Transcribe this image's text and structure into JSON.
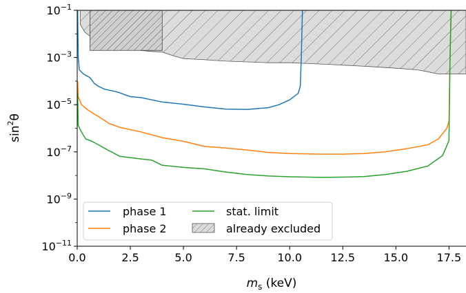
{
  "chart_data": {
    "type": "line",
    "xlabel": "m_s (keV)",
    "xlabel_parts": {
      "symbol": "m",
      "subscript": "s",
      "unit": " (keV)"
    },
    "ylabel": "sin²θ",
    "ylabel_parts": {
      "base": "sin",
      "sup": "2",
      "var": "θ"
    },
    "y_scale": "log",
    "xlim": [
      0,
      18.3
    ],
    "ylim": [
      1e-11,
      0.1
    ],
    "x_ticks": [
      0.0,
      2.5,
      5.0,
      7.5,
      10.0,
      12.5,
      15.0,
      17.5
    ],
    "x_tick_labels": [
      "0.0",
      "2.5",
      "5.0",
      "7.5",
      "10.0",
      "12.5",
      "15.0",
      "17.5"
    ],
    "y_ticks": [
      {
        "value": 1e-11,
        "base": "10",
        "exp": "−11"
      },
      {
        "value": 1e-09,
        "base": "10",
        "exp": "−9"
      },
      {
        "value": 1e-07,
        "base": "10",
        "exp": "−7"
      },
      {
        "value": 1e-05,
        "base": "10",
        "exp": "−5"
      },
      {
        "value": 0.001,
        "base": "10",
        "exp": "−3"
      },
      {
        "value": 0.1,
        "base": "10",
        "exp": "−1"
      }
    ],
    "grid": false,
    "legend_position": "lower-left",
    "series": [
      {
        "name": "phase 1",
        "color": "#1f77b4",
        "points": [
          [
            0.02,
            0.1
          ],
          [
            0.05,
            0.001
          ],
          [
            0.1,
            0.0003
          ],
          [
            0.3,
            0.0002
          ],
          [
            0.6,
            0.00014
          ],
          [
            0.8,
            8e-05
          ],
          [
            1.0,
            6e-05
          ],
          [
            1.3,
            4.5e-05
          ],
          [
            1.7,
            3.8e-05
          ],
          [
            2.0,
            3.2e-05
          ],
          [
            2.5,
            2.2e-05
          ],
          [
            3.0,
            2e-05
          ],
          [
            4.0,
            1.3e-05
          ],
          [
            5.0,
            1.05e-05
          ],
          [
            6.0,
            8e-06
          ],
          [
            7.0,
            6.5e-06
          ],
          [
            8.0,
            6.3e-06
          ],
          [
            9.0,
            7.5e-06
          ],
          [
            9.5,
            1e-05
          ],
          [
            10.0,
            1.6e-05
          ],
          [
            10.4,
            3e-05
          ],
          [
            10.5,
            6e-05
          ],
          [
            10.55,
            0.001
          ],
          [
            10.6,
            0.1
          ]
        ]
      },
      {
        "name": "phase 2",
        "color": "#ff7f0e",
        "points": [
          [
            0.02,
            0.0001
          ],
          [
            0.05,
            2.2e-05
          ],
          [
            0.2,
            1e-05
          ],
          [
            0.5,
            6e-06
          ],
          [
            0.8,
            4e-06
          ],
          [
            1.0,
            3.2e-06
          ],
          [
            1.5,
            1.6e-06
          ],
          [
            2.0,
            1.1e-06
          ],
          [
            3.0,
            7e-07
          ],
          [
            4.0,
            4e-07
          ],
          [
            5.0,
            2.8e-07
          ],
          [
            6.0,
            1.7e-07
          ],
          [
            7.0,
            1.45e-07
          ],
          [
            8.0,
            1.2e-07
          ],
          [
            9.0,
            9.5e-08
          ],
          [
            10.0,
            8.5e-08
          ],
          [
            11.5,
            8e-08
          ],
          [
            12.5,
            8e-08
          ],
          [
            13.5,
            8.5e-08
          ],
          [
            14.5,
            1e-07
          ],
          [
            15.5,
            1.35e-07
          ],
          [
            16.5,
            2e-07
          ],
          [
            17.0,
            3.5e-07
          ],
          [
            17.4,
            1e-06
          ],
          [
            17.5,
            2e-06
          ],
          [
            17.55,
            0.001
          ],
          [
            17.6,
            0.1
          ]
        ]
      },
      {
        "name": "stat. limit",
        "color": "#2ca02c",
        "points": [
          [
            0.02,
            3e-05
          ],
          [
            0.05,
            1.3e-06
          ],
          [
            0.2,
            7e-07
          ],
          [
            0.4,
            3.5e-07
          ],
          [
            0.7,
            2.8e-07
          ],
          [
            1.0,
            2e-07
          ],
          [
            1.3,
            1.4e-07
          ],
          [
            2.0,
            6.5e-08
          ],
          [
            3.0,
            5e-08
          ],
          [
            3.5,
            4.5e-08
          ],
          [
            4.0,
            2.7e-08
          ],
          [
            5.0,
            2.2e-08
          ],
          [
            6.0,
            1.9e-08
          ],
          [
            7.0,
            1.4e-08
          ],
          [
            8.0,
            1.1e-08
          ],
          [
            9.0,
            9.5e-09
          ],
          [
            10.0,
            8.8e-09
          ],
          [
            11.5,
            8.3e-09
          ],
          [
            12.5,
            8.5e-09
          ],
          [
            13.5,
            9e-09
          ],
          [
            14.5,
            1.1e-08
          ],
          [
            15.5,
            1.5e-08
          ],
          [
            16.5,
            2.5e-08
          ],
          [
            17.2,
            7e-08
          ],
          [
            17.5,
            3e-07
          ],
          [
            17.55,
            0.001
          ],
          [
            17.6,
            0.1
          ]
        ]
      }
    ],
    "excluded_region": {
      "name": "already excluded",
      "fill": "#d9d9d9",
      "edge": "#555555",
      "boundary": [
        [
          0.15,
          0.1
        ],
        [
          0.15,
          0.025
        ],
        [
          0.35,
          0.012
        ],
        [
          0.6,
          0.008
        ],
        [
          1.0,
          0.006
        ],
        [
          1.5,
          0.007
        ],
        [
          2.0,
          0.004
        ],
        [
          2.5,
          0.0025
        ],
        [
          3.0,
          0.002
        ],
        [
          3.5,
          0.0018
        ],
        [
          4.0,
          0.0017
        ],
        [
          4.5,
          0.0012
        ],
        [
          5.0,
          0.0009
        ],
        [
          5.5,
          0.00085
        ],
        [
          6.0,
          0.0008
        ],
        [
          7.0,
          0.0007
        ],
        [
          8.0,
          0.00065
        ],
        [
          9.0,
          0.0006
        ],
        [
          10.0,
          0.0006
        ],
        [
          11.0,
          0.00055
        ],
        [
          12.0,
          0.0005
        ],
        [
          13.0,
          0.00045
        ],
        [
          14.0,
          0.0004
        ],
        [
          15.0,
          0.00035
        ],
        [
          16.0,
          0.0003
        ],
        [
          16.5,
          0.00025
        ],
        [
          17.0,
          0.0002
        ],
        [
          18.3,
          0.0002
        ],
        [
          18.3,
          0.1
        ]
      ],
      "dense_box_x": [
        0.6,
        4.0
      ],
      "dense_box_y": [
        0.002,
        0.1
      ]
    }
  }
}
